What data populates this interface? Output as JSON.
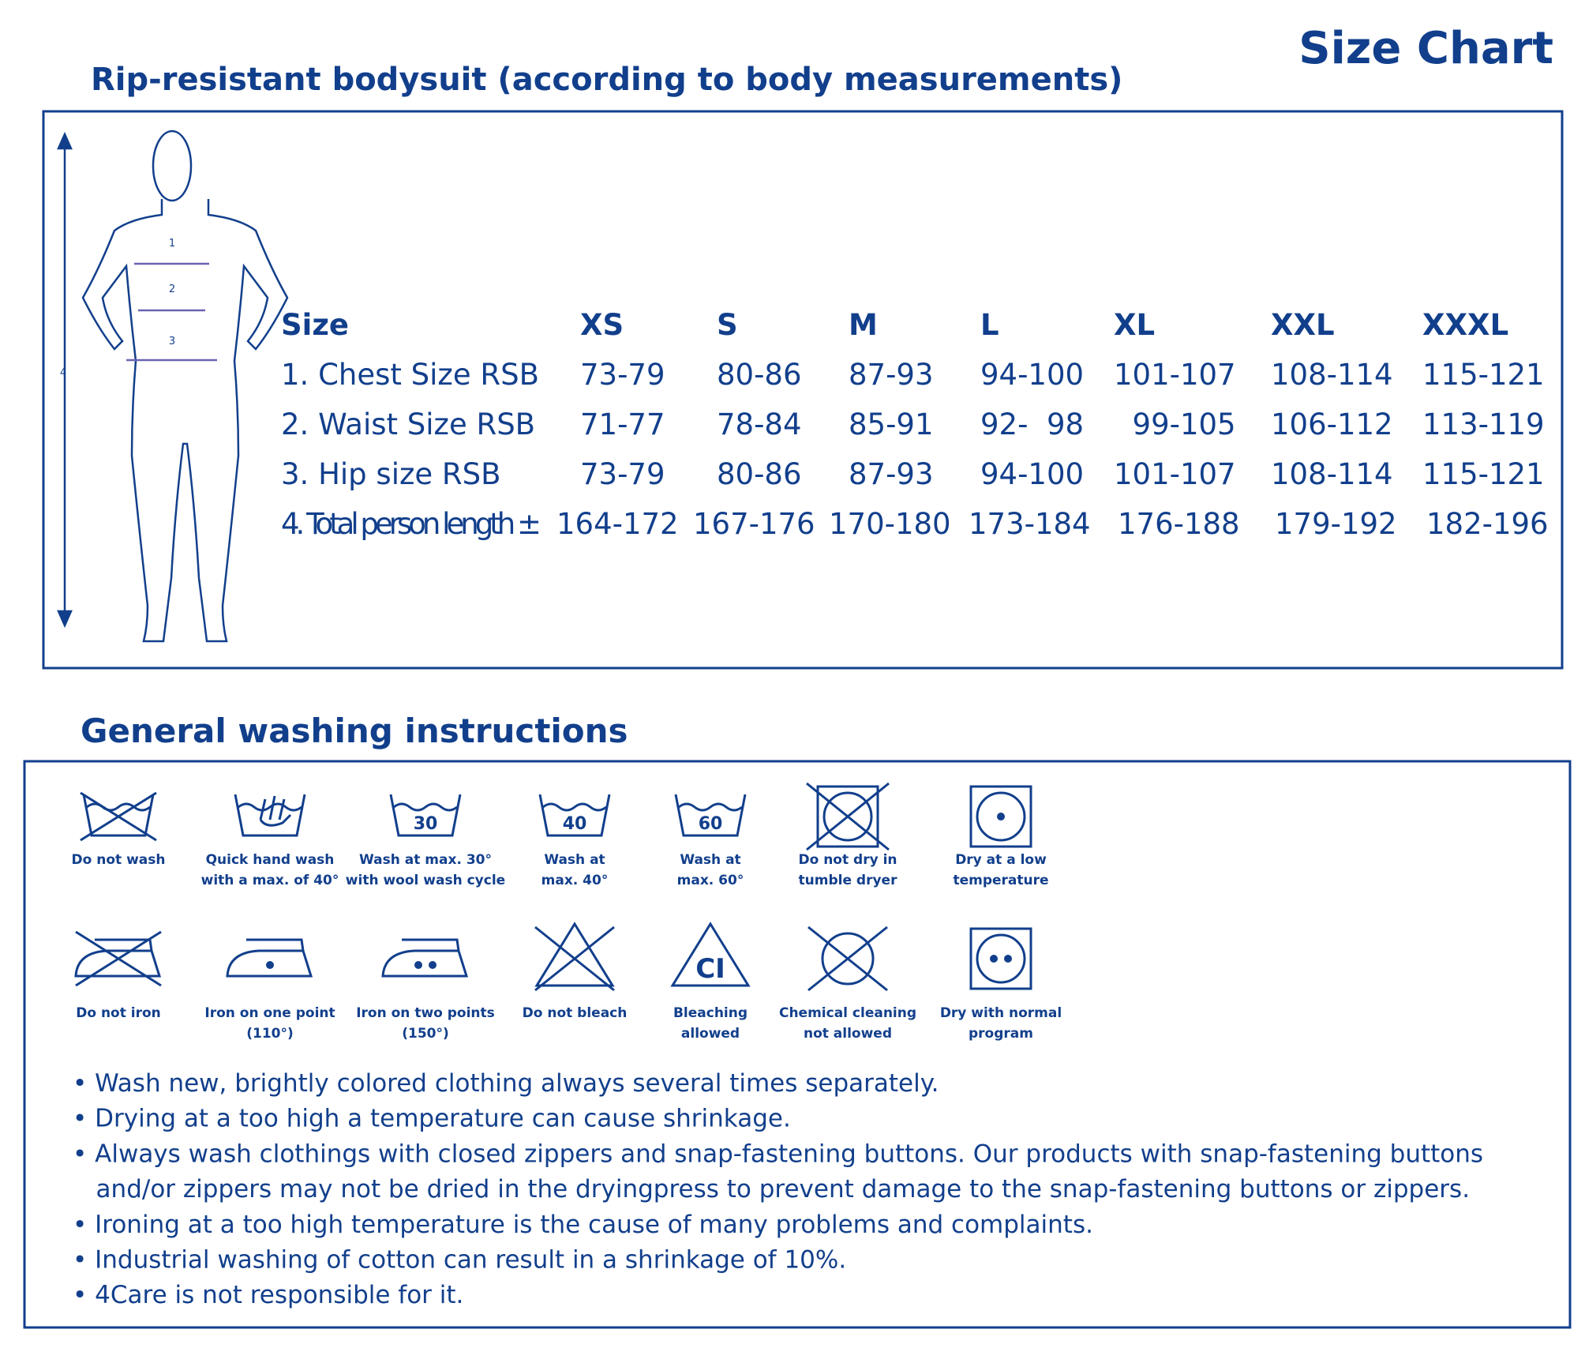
{
  "header": {
    "title": "Size Chart",
    "subtitle": "Rip-resistant bodysuit (according to body measurements)"
  },
  "figure": {
    "markers": [
      "1",
      "2",
      "3",
      "4"
    ]
  },
  "table": {
    "header": [
      "Size",
      "XS",
      "S",
      "M",
      "L",
      "XL",
      "XXL",
      "XXXL"
    ],
    "rows": [
      [
        "1. Chest Size RSB",
        "73-79",
        "80-86",
        "87-93",
        "94-100",
        "101-107",
        "108-114",
        "115-121"
      ],
      [
        "2. Waist Size RSB",
        "71-77",
        "78-84",
        "85-91",
        "92-  98",
        "  99-105",
        "106-112",
        "113-119"
      ],
      [
        "3. Hip size RSB",
        "73-79",
        "80-86",
        "87-93",
        "94-100",
        "101-107",
        "108-114",
        "115-121"
      ],
      [
        "4. Total person length ±",
        "164-172",
        "167-176",
        "170-180",
        "173-184",
        "176-188",
        "179-192",
        "182-196"
      ]
    ]
  },
  "washing": {
    "title": "General washing instructions",
    "icons": [
      {
        "label": [
          "Do not wash"
        ]
      },
      {
        "label": [
          "Quick hand wash",
          "with a max. of 40°"
        ]
      },
      {
        "label": [
          "Wash at max. 30°",
          "with wool wash cycle"
        ],
        "mark": "30"
      },
      {
        "label": [
          "Wash at",
          "max. 40°"
        ],
        "mark": "40"
      },
      {
        "label": [
          "Wash at",
          "max. 60°"
        ],
        "mark": "60"
      },
      {
        "label": [
          "Do not dry in",
          "tumble dryer"
        ]
      },
      {
        "label": [
          "Dry at a low",
          "temperature"
        ]
      },
      {
        "label": [
          "Do not iron"
        ]
      },
      {
        "label": [
          "Iron on one point",
          "(110°)"
        ]
      },
      {
        "label": [
          "Iron on two points",
          "(150°)"
        ]
      },
      {
        "label": [
          "Do not bleach"
        ]
      },
      {
        "label": [
          "Bleaching",
          "allowed"
        ],
        "mark": "CI"
      },
      {
        "label": [
          "Chemical cleaning",
          "not allowed"
        ]
      },
      {
        "label": [
          "Dry with normal",
          "program"
        ]
      }
    ],
    "bullets": [
      [
        "• Wash new, brightly colored clothing always several times separately."
      ],
      [
        "• Drying at a too high a temperature can cause shrinkage."
      ],
      [
        "• Always wash clothings with closed zippers and snap-fastening buttons. Our products with snap-fastening buttons",
        "   and/or zippers may not be dried in the dryingpress to prevent damage to the snap-fastening buttons or zippers."
      ],
      [
        "• Ironing at a too high temperature is the cause of many problems and complaints."
      ],
      [
        "• Industrial washing of cotton can result in a shrinkage of 10%."
      ],
      [
        "• 4Care is not responsible for it."
      ]
    ]
  }
}
